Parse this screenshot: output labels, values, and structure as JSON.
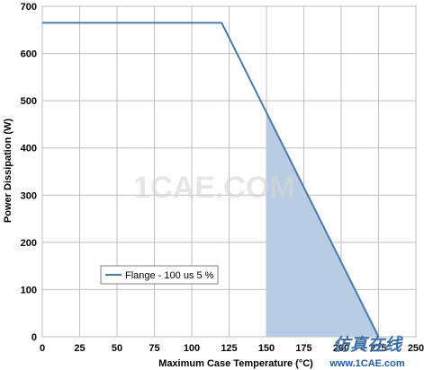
{
  "chart_data": {
    "type": "line",
    "xlabel": "Maximum Case Temperature (°C)",
    "ylabel": "Power Dissipation (W)",
    "xlim": [
      0,
      250
    ],
    "ylim": [
      0,
      700
    ],
    "x_ticks": [
      0,
      25,
      50,
      75,
      100,
      125,
      150,
      175,
      200,
      225,
      250
    ],
    "y_ticks": [
      0,
      100,
      200,
      300,
      400,
      500,
      600,
      700
    ],
    "grid": true,
    "legend_position": "bottom-left",
    "series": [
      {
        "name": "Flange - 100 us 5 %",
        "color": "#4a7ba7",
        "x": [
          0,
          120,
          225
        ],
        "y": [
          665,
          665,
          0
        ]
      }
    ],
    "shaded_region": {
      "color": "#b8cce4",
      "x": [
        150,
        150,
        225
      ],
      "y": [
        0,
        475,
        0
      ]
    }
  },
  "watermarks": {
    "center": "1CAE.COM",
    "corner_cn": "仿真在线",
    "corner_url": "www.1CAE.com"
  }
}
